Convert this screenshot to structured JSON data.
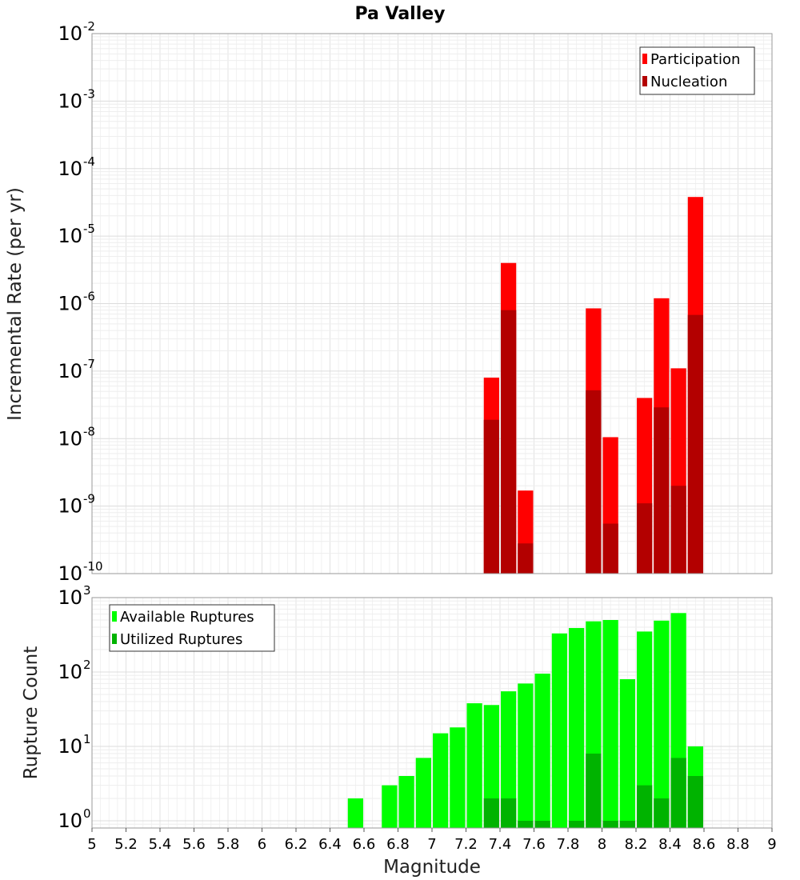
{
  "chart_data": [
    {
      "type": "bar",
      "title": "Pa Valley",
      "xlabel": "",
      "ylabel": "Incremental Rate (per yr)",
      "yscale": "log",
      "ylim": [
        1e-10,
        0.01
      ],
      "xlim": [
        5,
        9
      ],
      "legend": {
        "placement": "top-right",
        "entries": [
          "Participation",
          "Nucleation"
        ]
      },
      "grid": true,
      "y_ticks": [
        {
          "base": "10",
          "exp": "-2",
          "value": 0.01
        },
        {
          "base": "10",
          "exp": "-3",
          "value": 0.001
        },
        {
          "base": "10",
          "exp": "-4",
          "value": 0.0001
        },
        {
          "base": "10",
          "exp": "-5",
          "value": 1e-05
        },
        {
          "base": "10",
          "exp": "-6",
          "value": 1e-06
        },
        {
          "base": "10",
          "exp": "-7",
          "value": 1e-07
        },
        {
          "base": "10",
          "exp": "-8",
          "value": 1e-08
        },
        {
          "base": "10",
          "exp": "-9",
          "value": 1e-09
        },
        {
          "base": "10",
          "exp": "-10",
          "value": 1e-10
        }
      ],
      "series": [
        {
          "name": "Participation",
          "color": "#ff0000",
          "x": [
            7.35,
            7.45,
            7.55,
            7.95,
            8.05,
            8.25,
            8.35,
            8.45,
            8.55
          ],
          "values": [
            8e-08,
            4e-06,
            1.7e-09,
            8.5e-07,
            1.05e-08,
            4e-08,
            1.2e-06,
            1.1e-07,
            3.8e-05
          ]
        },
        {
          "name": "Nucleation",
          "color": "#b30000",
          "x": [
            7.35,
            7.45,
            7.55,
            7.95,
            8.05,
            8.25,
            8.35,
            8.45,
            8.55
          ],
          "values": [
            1.9e-08,
            8e-07,
            2.8e-10,
            5.2e-08,
            5.5e-10,
            1.1e-09,
            2.9e-08,
            2e-09,
            6.8e-07
          ]
        }
      ]
    },
    {
      "type": "bar",
      "title": "",
      "xlabel": "Magnitude",
      "ylabel": "Rupture Count",
      "yscale": "log",
      "ylim": [
        0.8,
        1000
      ],
      "xlim": [
        5,
        9
      ],
      "legend": {
        "placement": "top-left",
        "entries": [
          "Available Ruptures",
          "Utilized Ruptures"
        ]
      },
      "grid": true,
      "x_ticks": [
        "5",
        "5.2",
        "5.4",
        "5.6",
        "5.8",
        "6",
        "6.2",
        "6.4",
        "6.6",
        "6.8",
        "7",
        "7.2",
        "7.4",
        "7.6",
        "7.8",
        "8",
        "8.2",
        "8.4",
        "8.6",
        "8.8",
        "9"
      ],
      "y_ticks": [
        {
          "base": "10",
          "exp": "3",
          "value": 1000
        },
        {
          "base": "10",
          "exp": "2",
          "value": 100
        },
        {
          "base": "10",
          "exp": "1",
          "value": 10
        },
        {
          "base": "10",
          "exp": "0",
          "value": 1
        }
      ],
      "series": [
        {
          "name": "Available Ruptures",
          "color": "#00ff00",
          "x": [
            6.55,
            6.75,
            6.85,
            6.95,
            7.05,
            7.15,
            7.25,
            7.35,
            7.45,
            7.55,
            7.65,
            7.75,
            7.85,
            7.95,
            8.05,
            8.15,
            8.25,
            8.35,
            8.45,
            8.55
          ],
          "values": [
            2,
            3,
            4,
            7,
            15,
            18,
            38,
            36,
            55,
            70,
            95,
            330,
            390,
            480,
            500,
            80,
            350,
            490,
            620,
            10
          ]
        },
        {
          "name": "Utilized Ruptures",
          "color": "#00b300",
          "x": [
            7.35,
            7.45,
            7.55,
            7.65,
            7.85,
            7.95,
            8.05,
            8.15,
            8.25,
            8.35,
            8.45,
            8.55
          ],
          "values": [
            2,
            2,
            1,
            1,
            1,
            8,
            1,
            1,
            3,
            2,
            7,
            4
          ]
        }
      ]
    }
  ]
}
